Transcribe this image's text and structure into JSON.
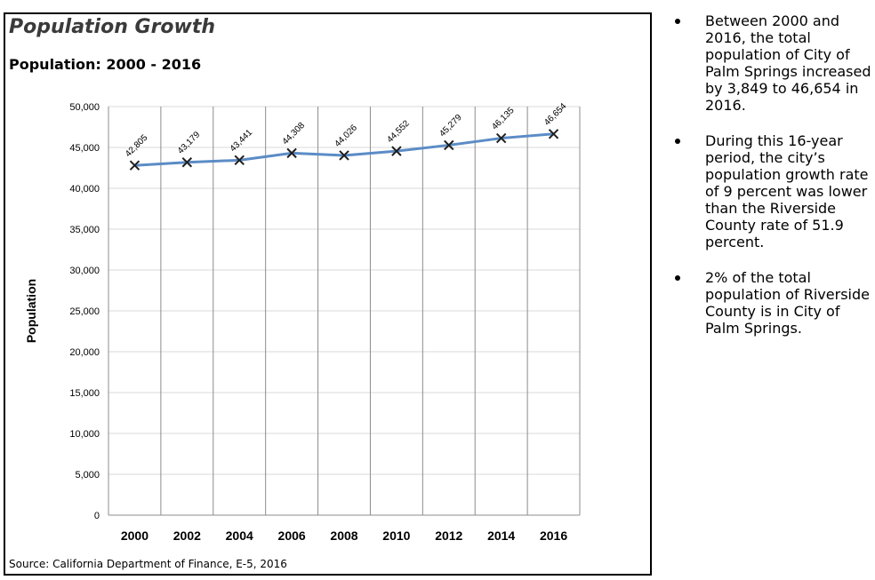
{
  "header": {
    "title": "Population Growth",
    "subtitle": "Population: 2000 - 2016"
  },
  "source": "Source: California Department of Finance, E-5, 2016",
  "bullets": [
    "Between 2000 and 2016, the total population of City of Palm Springs increased by 3,849 to 46,654 in 2016.",
    "During this 16-year period, the city’s population growth rate of 9 percent was lower than the Riverside County rate of 51.9 percent.",
    "2% of the total population of Riverside County is in City of Palm Springs."
  ],
  "colors": {
    "line": "#5b8cc6",
    "marker": "#1f1f1f"
  },
  "chart_data": {
    "type": "line",
    "ylabel": "Population",
    "xlabel": "",
    "x": [
      "2000",
      "2002",
      "2004",
      "2006",
      "2008",
      "2010",
      "2012",
      "2014",
      "2016"
    ],
    "series": [
      {
        "values": [
          42805,
          43179,
          43441,
          44308,
          44026,
          44552,
          45279,
          46135,
          46654
        ]
      }
    ],
    "data_labels": [
      "42,805",
      "43,179",
      "43,441",
      "44,308",
      "44,026",
      "44,552",
      "45,279",
      "46,135",
      "46,654"
    ],
    "ylim": [
      0,
      50000
    ],
    "yticks": [
      0,
      5000,
      10000,
      15000,
      20000,
      25000,
      30000,
      35000,
      40000,
      45000,
      50000
    ],
    "ytick_labels": [
      "0",
      "5,000",
      "10,000",
      "15,000",
      "20,000",
      "25,000",
      "30,000",
      "35,000",
      "40,000",
      "45,000",
      "50,000"
    ],
    "grid": true,
    "marker": "x"
  }
}
